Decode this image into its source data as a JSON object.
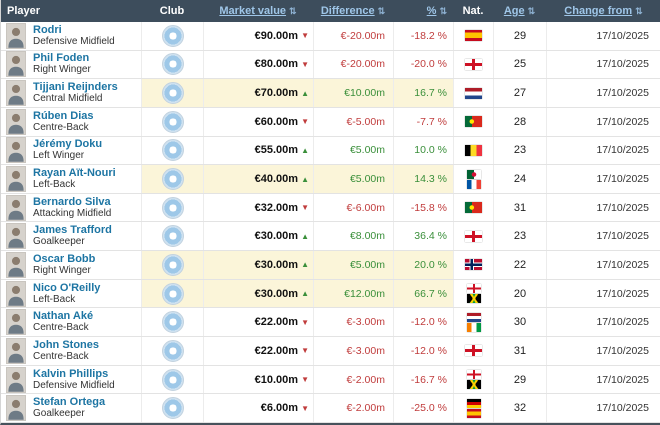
{
  "header": {
    "columns": [
      {
        "label": "Player",
        "sortable": false
      },
      {
        "label": "Club",
        "sortable": false
      },
      {
        "label": "Market value",
        "sortable": true
      },
      {
        "label": "Difference",
        "sortable": true
      },
      {
        "label": "%",
        "sortable": true
      },
      {
        "label": "Nat.",
        "sortable": false
      },
      {
        "label": "Age",
        "sortable": true
      },
      {
        "label": "Change from",
        "sortable": true
      }
    ],
    "sort_icon": "⇅"
  },
  "icons": {
    "up": "▲",
    "down": "▼",
    "sort": "⇅",
    "club_badge": "manchester-city-badge"
  },
  "colors": {
    "header_bg": "#3d4d5c",
    "link": "#1d75a3",
    "positive": "#3a8f3a",
    "negative": "#c03c3c",
    "highlight_bg": "#fbf5d9"
  },
  "rows": [
    {
      "name": "Rodri",
      "position": "Defensive Midfield",
      "market_value": "€90.00m",
      "trend": "down",
      "difference": "€-20.00m",
      "percent": "-18.2 %",
      "nationalities": [
        "Spain"
      ],
      "age": "29",
      "change_from": "17/10/2025",
      "highlight": false
    },
    {
      "name": "Phil Foden",
      "position": "Right Winger",
      "market_value": "€80.00m",
      "trend": "down",
      "difference": "€-20.00m",
      "percent": "-20.0 %",
      "nationalities": [
        "England"
      ],
      "age": "25",
      "change_from": "17/10/2025",
      "highlight": false
    },
    {
      "name": "Tijjani Reijnders",
      "position": "Central Midfield",
      "market_value": "€70.00m",
      "trend": "up",
      "difference": "€10.00m",
      "percent": "16.7 %",
      "nationalities": [
        "Netherlands"
      ],
      "age": "27",
      "change_from": "17/10/2025",
      "highlight": true
    },
    {
      "name": "Rúben Dias",
      "position": "Centre-Back",
      "market_value": "€60.00m",
      "trend": "down",
      "difference": "€-5.00m",
      "percent": "-7.7 %",
      "nationalities": [
        "Portugal"
      ],
      "age": "28",
      "change_from": "17/10/2025",
      "highlight": false
    },
    {
      "name": "Jérémy Doku",
      "position": "Left Winger",
      "market_value": "€55.00m",
      "trend": "up",
      "difference": "€5.00m",
      "percent": "10.0 %",
      "nationalities": [
        "Belgium"
      ],
      "age": "23",
      "change_from": "17/10/2025",
      "highlight": false
    },
    {
      "name": "Rayan Aït-Nouri",
      "position": "Left-Back",
      "market_value": "€40.00m",
      "trend": "up",
      "difference": "€5.00m",
      "percent": "14.3 %",
      "nationalities": [
        "Algeria",
        "France"
      ],
      "age": "24",
      "change_from": "17/10/2025",
      "highlight": true
    },
    {
      "name": "Bernardo Silva",
      "position": "Attacking Midfield",
      "market_value": "€32.00m",
      "trend": "down",
      "difference": "€-6.00m",
      "percent": "-15.8 %",
      "nationalities": [
        "Portugal"
      ],
      "age": "31",
      "change_from": "17/10/2025",
      "highlight": false
    },
    {
      "name": "James Trafford",
      "position": "Goalkeeper",
      "market_value": "€30.00m",
      "trend": "up",
      "difference": "€8.00m",
      "percent": "36.4 %",
      "nationalities": [
        "England"
      ],
      "age": "23",
      "change_from": "17/10/2025",
      "highlight": false
    },
    {
      "name": "Oscar Bobb",
      "position": "Right Winger",
      "market_value": "€30.00m",
      "trend": "up",
      "difference": "€5.00m",
      "percent": "20.0 %",
      "nationalities": [
        "Norway"
      ],
      "age": "22",
      "change_from": "17/10/2025",
      "highlight": true
    },
    {
      "name": "Nico O'Reilly",
      "position": "Left-Back",
      "market_value": "€30.00m",
      "trend": "up",
      "difference": "€12.00m",
      "percent": "66.7 %",
      "nationalities": [
        "England",
        "Jamaica"
      ],
      "age": "20",
      "change_from": "17/10/2025",
      "highlight": true
    },
    {
      "name": "Nathan Aké",
      "position": "Centre-Back",
      "market_value": "€22.00m",
      "trend": "down",
      "difference": "€-3.00m",
      "percent": "-12.0 %",
      "nationalities": [
        "Netherlands",
        "Ivory Coast"
      ],
      "age": "30",
      "change_from": "17/10/2025",
      "highlight": false
    },
    {
      "name": "John Stones",
      "position": "Centre-Back",
      "market_value": "€22.00m",
      "trend": "down",
      "difference": "€-3.00m",
      "percent": "-12.0 %",
      "nationalities": [
        "England"
      ],
      "age": "31",
      "change_from": "17/10/2025",
      "highlight": false
    },
    {
      "name": "Kalvin Phillips",
      "position": "Defensive Midfield",
      "market_value": "€10.00m",
      "trend": "down",
      "difference": "€-2.00m",
      "percent": "-16.7 %",
      "nationalities": [
        "England",
        "Jamaica"
      ],
      "age": "29",
      "change_from": "17/10/2025",
      "highlight": false
    },
    {
      "name": "Stefan Ortega",
      "position": "Goalkeeper",
      "market_value": "€6.00m",
      "trend": "down",
      "difference": "€-2.00m",
      "percent": "-25.0 %",
      "nationalities": [
        "Germany",
        "Spain"
      ],
      "age": "32",
      "change_from": "17/10/2025",
      "highlight": false
    }
  ]
}
